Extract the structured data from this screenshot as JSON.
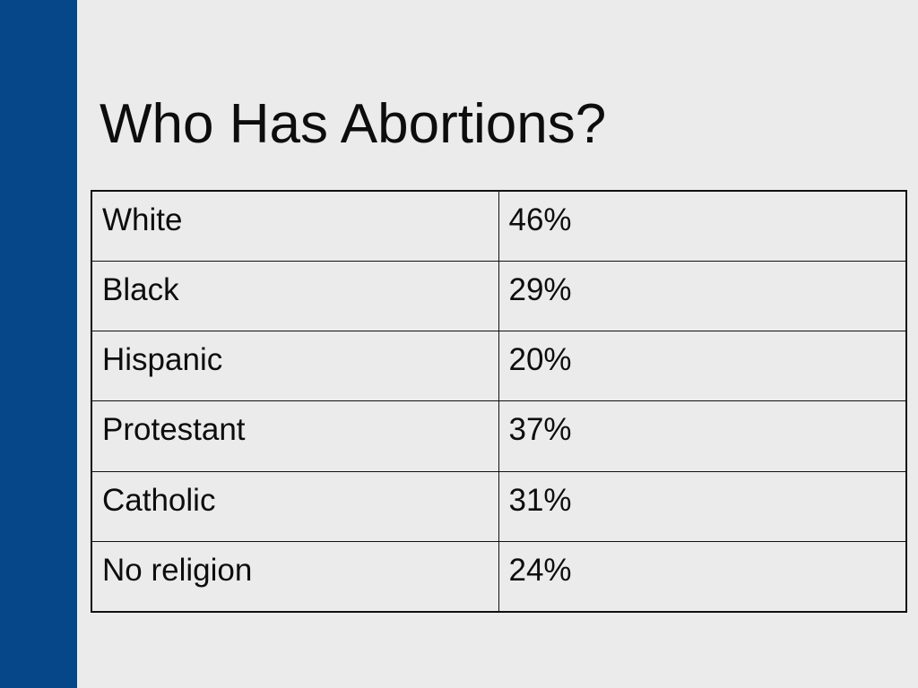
{
  "slide": {
    "title": "Who Has Abortions?",
    "accent_color": "#054789",
    "background_color": "#ebebeb"
  },
  "table": {
    "rows": [
      {
        "label": "White",
        "value": "46%"
      },
      {
        "label": "Black",
        "value": "29%"
      },
      {
        "label": "Hispanic",
        "value": "20%"
      },
      {
        "label": "Protestant",
        "value": "37%"
      },
      {
        "label": "Catholic",
        "value": "31%"
      },
      {
        "label": "No religion",
        "value": "24%"
      }
    ]
  }
}
